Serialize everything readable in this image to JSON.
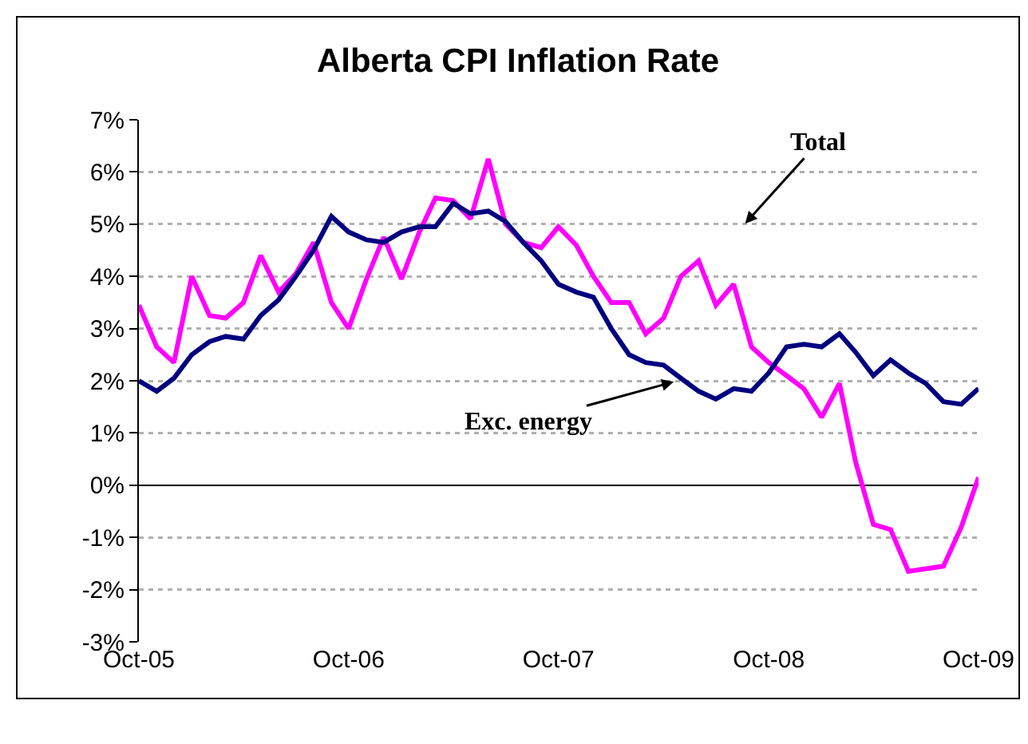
{
  "chart_data": {
    "type": "line",
    "title": "Alberta CPI Inflation Rate",
    "x": [
      "2005-10",
      "2005-11",
      "2005-12",
      "2006-01",
      "2006-02",
      "2006-03",
      "2006-04",
      "2006-05",
      "2006-06",
      "2006-07",
      "2006-08",
      "2006-09",
      "2006-10",
      "2006-11",
      "2006-12",
      "2007-01",
      "2007-02",
      "2007-03",
      "2007-04",
      "2007-05",
      "2007-06",
      "2007-07",
      "2007-08",
      "2007-09",
      "2007-10",
      "2007-11",
      "2007-12",
      "2008-01",
      "2008-02",
      "2008-03",
      "2008-04",
      "2008-05",
      "2008-06",
      "2008-07",
      "2008-08",
      "2008-09",
      "2008-10",
      "2008-11",
      "2008-12",
      "2009-01",
      "2009-02",
      "2009-03",
      "2009-04",
      "2009-05",
      "2009-06",
      "2009-07",
      "2009-08",
      "2009-09",
      "2009-10"
    ],
    "series": [
      {
        "name": "Total",
        "color": "#ff00ff",
        "values": [
          3.45,
          2.65,
          2.35,
          4.0,
          3.25,
          3.2,
          3.5,
          4.4,
          3.7,
          4.05,
          4.65,
          3.5,
          3.0,
          3.95,
          4.75,
          3.95,
          4.85,
          5.5,
          5.45,
          5.1,
          6.25,
          5.0,
          4.65,
          4.55,
          4.95,
          4.6,
          4.0,
          3.5,
          3.5,
          2.9,
          3.2,
          4.0,
          4.3,
          3.45,
          3.85,
          2.65,
          2.35,
          2.1,
          1.85,
          1.3,
          1.95,
          0.45,
          -0.75,
          -0.85,
          -1.65,
          -1.6,
          -1.55,
          -0.8,
          0.15
        ]
      },
      {
        "name": "Exc. energy",
        "color": "#000080",
        "values": [
          2.0,
          1.8,
          2.05,
          2.5,
          2.75,
          2.85,
          2.8,
          3.25,
          3.55,
          4.0,
          4.5,
          5.15,
          4.85,
          4.7,
          4.65,
          4.85,
          4.95,
          4.95,
          5.4,
          5.2,
          5.25,
          5.05,
          4.65,
          4.3,
          3.85,
          3.7,
          3.6,
          3.0,
          2.5,
          2.35,
          2.3,
          2.05,
          1.8,
          1.65,
          1.85,
          1.8,
          2.15,
          2.65,
          2.7,
          2.65,
          2.9,
          2.55,
          2.1,
          2.4,
          2.15,
          1.95,
          1.6,
          1.55,
          1.85
        ]
      }
    ],
    "xlim": [
      "2005-10",
      "2009-10"
    ],
    "xticks": [
      {
        "value": "2005-10",
        "label": "Oct-05"
      },
      {
        "value": "2006-10",
        "label": "Oct-06"
      },
      {
        "value": "2007-10",
        "label": "Oct-07"
      },
      {
        "value": "2008-10",
        "label": "Oct-08"
      },
      {
        "value": "2009-10",
        "label": "Oct-09"
      }
    ],
    "ylim": [
      -3,
      7
    ],
    "yticks": [
      {
        "value": -3,
        "label": "-3%"
      },
      {
        "value": -2,
        "label": "-2%"
      },
      {
        "value": -1,
        "label": "-1%"
      },
      {
        "value": 0,
        "label": "0%"
      },
      {
        "value": 1,
        "label": "1%"
      },
      {
        "value": 2,
        "label": "2%"
      },
      {
        "value": 3,
        "label": "3%"
      },
      {
        "value": 4,
        "label": "4%"
      },
      {
        "value": 5,
        "label": "5%"
      },
      {
        "value": 6,
        "label": "6%"
      },
      {
        "value": 7,
        "label": "7%"
      }
    ],
    "grid": "y",
    "legend": false,
    "marker": "none",
    "line_style": "solid"
  }
}
